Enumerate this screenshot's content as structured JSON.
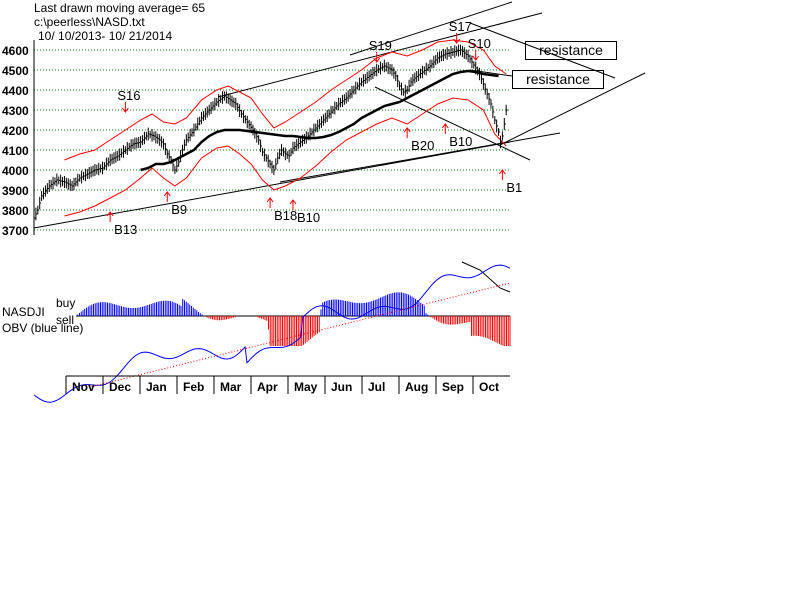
{
  "header": {
    "line1": "Last drawn moving average= 65",
    "line2": "c:\\peerless\\NASD.txt",
    "line3": "10/ 10/2013- 10/ 21/2014"
  },
  "colors": {
    "price": "#000000",
    "band": "#ff0000",
    "ma": "#000000",
    "obv": "#0000ff",
    "grid": "#008000",
    "buy_hist": "#0000ff",
    "sell_hist": "#ff0000",
    "sell_arrow": "#ff0000",
    "buy_arrow": "#ff0000"
  },
  "chart_data": {
    "type": "line",
    "title": "",
    "ylabel": "",
    "xlabel": "",
    "ylim": [
      3700,
      4650
    ],
    "y_ticks": [
      3700,
      3800,
      3900,
      4000,
      4100,
      4200,
      4300,
      4400,
      4500,
      4600
    ],
    "grid": true,
    "x_months": [
      "Nov",
      "Dec",
      "Jan",
      "Feb",
      "Mar",
      "Apr",
      "May",
      "Jun",
      "Jul",
      "Aug",
      "Sep",
      "Oct"
    ],
    "price_series": {
      "name": "",
      "points": [
        [
          0,
          3760
        ],
        [
          2,
          3800
        ],
        [
          4,
          3870
        ],
        [
          8,
          3920
        ],
        [
          12,
          3950
        ],
        [
          16,
          3940
        ],
        [
          20,
          3920
        ],
        [
          24,
          3960
        ],
        [
          28,
          3980
        ],
        [
          32,
          4000
        ],
        [
          36,
          4010
        ],
        [
          40,
          4050
        ],
        [
          44,
          4070
        ],
        [
          48,
          4100
        ],
        [
          52,
          4130
        ],
        [
          56,
          4140
        ],
        [
          60,
          4180
        ],
        [
          63,
          4170
        ],
        [
          66,
          4150
        ],
        [
          68,
          4130
        ],
        [
          70,
          4080
        ],
        [
          72,
          4050
        ],
        [
          74,
          4000
        ],
        [
          76,
          4040
        ],
        [
          78,
          4100
        ],
        [
          80,
          4150
        ],
        [
          84,
          4200
        ],
        [
          88,
          4260
        ],
        [
          92,
          4300
        ],
        [
          96,
          4340
        ],
        [
          100,
          4370
        ],
        [
          103,
          4350
        ],
        [
          106,
          4330
        ],
        [
          109,
          4280
        ],
        [
          112,
          4240
        ],
        [
          115,
          4200
        ],
        [
          118,
          4150
        ],
        [
          120,
          4090
        ],
        [
          122,
          4060
        ],
        [
          124,
          4030
        ],
        [
          126,
          4000
        ],
        [
          128,
          4060
        ],
        [
          130,
          4100
        ],
        [
          132,
          4080
        ],
        [
          134,
          4070
        ],
        [
          136,
          4110
        ],
        [
          140,
          4140
        ],
        [
          144,
          4170
        ],
        [
          148,
          4210
        ],
        [
          152,
          4250
        ],
        [
          156,
          4290
        ],
        [
          160,
          4330
        ],
        [
          164,
          4360
        ],
        [
          168,
          4400
        ],
        [
          172,
          4440
        ],
        [
          176,
          4470
        ],
        [
          180,
          4500
        ],
        [
          184,
          4520
        ],
        [
          188,
          4500
        ],
        [
          190,
          4470
        ],
        [
          192,
          4420
        ],
        [
          194,
          4390
        ],
        [
          196,
          4400
        ],
        [
          198,
          4440
        ],
        [
          200,
          4460
        ],
        [
          204,
          4490
        ],
        [
          208,
          4520
        ],
        [
          212,
          4560
        ],
        [
          216,
          4580
        ],
        [
          220,
          4590
        ],
        [
          224,
          4600
        ],
        [
          228,
          4570
        ],
        [
          230,
          4540
        ],
        [
          232,
          4510
        ],
        [
          234,
          4480
        ],
        [
          236,
          4430
        ],
        [
          238,
          4380
        ],
        [
          240,
          4330
        ],
        [
          242,
          4250
        ],
        [
          244,
          4190
        ],
        [
          245,
          4140
        ],
        [
          246,
          4170
        ],
        [
          247,
          4230
        ],
        [
          248,
          4300
        ]
      ]
    },
    "ma65": {
      "name": "",
      "points": [
        [
          56,
          4000
        ],
        [
          60,
          4010
        ],
        [
          64,
          4030
        ],
        [
          68,
          4030
        ],
        [
          72,
          4040
        ],
        [
          76,
          4060
        ],
        [
          80,
          4080
        ],
        [
          84,
          4100
        ],
        [
          88,
          4140
        ],
        [
          92,
          4170
        ],
        [
          96,
          4190
        ],
        [
          100,
          4200
        ],
        [
          104,
          4200
        ],
        [
          108,
          4200
        ],
        [
          112,
          4195
        ],
        [
          116,
          4190
        ],
        [
          120,
          4185
        ],
        [
          124,
          4180
        ],
        [
          128,
          4175
        ],
        [
          132,
          4170
        ],
        [
          136,
          4170
        ],
        [
          140,
          4165
        ],
        [
          144,
          4160
        ],
        [
          148,
          4160
        ],
        [
          152,
          4165
        ],
        [
          156,
          4175
        ],
        [
          160,
          4190
        ],
        [
          164,
          4210
        ],
        [
          168,
          4230
        ],
        [
          172,
          4260
        ],
        [
          176,
          4280
        ],
        [
          180,
          4300
        ],
        [
          184,
          4320
        ],
        [
          188,
          4330
        ],
        [
          192,
          4340
        ],
        [
          196,
          4360
        ],
        [
          200,
          4380
        ],
        [
          204,
          4400
        ],
        [
          208,
          4420
        ],
        [
          212,
          4440
        ],
        [
          216,
          4460
        ],
        [
          220,
          4480
        ],
        [
          224,
          4490
        ],
        [
          228,
          4495
        ],
        [
          232,
          4490
        ],
        [
          236,
          4480
        ],
        [
          240,
          4475
        ],
        [
          244,
          4470
        ]
      ]
    },
    "upper_band": {
      "name": "",
      "points": [
        [
          16,
          4050
        ],
        [
          24,
          4080
        ],
        [
          32,
          4100
        ],
        [
          40,
          4150
        ],
        [
          48,
          4200
        ],
        [
          56,
          4250
        ],
        [
          62,
          4280
        ],
        [
          68,
          4240
        ],
        [
          74,
          4230
        ],
        [
          80,
          4260
        ],
        [
          88,
          4350
        ],
        [
          96,
          4400
        ],
        [
          102,
          4420
        ],
        [
          108,
          4390
        ],
        [
          114,
          4360
        ],
        [
          120,
          4280
        ],
        [
          126,
          4210
        ],
        [
          132,
          4240
        ],
        [
          140,
          4290
        ],
        [
          148,
          4340
        ],
        [
          156,
          4400
        ],
        [
          164,
          4450
        ],
        [
          172,
          4500
        ],
        [
          180,
          4560
        ],
        [
          188,
          4590
        ],
        [
          196,
          4570
        ],
        [
          204,
          4600
        ],
        [
          212,
          4640
        ],
        [
          220,
          4650
        ],
        [
          228,
          4640
        ],
        [
          236,
          4600
        ],
        [
          242,
          4520
        ],
        [
          248,
          4480
        ]
      ]
    },
    "lower_band": {
      "name": "",
      "points": [
        [
          16,
          3770
        ],
        [
          24,
          3790
        ],
        [
          32,
          3820
        ],
        [
          40,
          3860
        ],
        [
          48,
          3900
        ],
        [
          56,
          3960
        ],
        [
          62,
          4010
        ],
        [
          68,
          3960
        ],
        [
          74,
          3920
        ],
        [
          80,
          3960
        ],
        [
          88,
          4060
        ],
        [
          96,
          4110
        ],
        [
          102,
          4120
        ],
        [
          108,
          4080
        ],
        [
          114,
          4030
        ],
        [
          120,
          3950
        ],
        [
          126,
          3900
        ],
        [
          132,
          3920
        ],
        [
          140,
          3960
        ],
        [
          148,
          4020
        ],
        [
          156,
          4090
        ],
        [
          164,
          4150
        ],
        [
          172,
          4190
        ],
        [
          180,
          4230
        ],
        [
          188,
          4260
        ],
        [
          196,
          4230
        ],
        [
          204,
          4280
        ],
        [
          212,
          4330
        ],
        [
          220,
          4360
        ],
        [
          228,
          4350
        ],
        [
          236,
          4300
        ],
        [
          242,
          4180
        ],
        [
          248,
          4120
        ]
      ]
    },
    "signals": [
      {
        "label": "S16",
        "x": 48,
        "y": 4260,
        "kind": "sell"
      },
      {
        "label": "S17",
        "x": 222,
        "y": 4605,
        "kind": "sell"
      },
      {
        "label": "S19",
        "x": 180,
        "y": 4510,
        "kind": "sell"
      },
      {
        "label": "S10",
        "x": 232,
        "y": 4520,
        "kind": "sell"
      },
      {
        "label": "B9",
        "x": 70,
        "y": 3920,
        "kind": "buy"
      },
      {
        "label": "B13",
        "x": 40,
        "y": 3820,
        "kind": "buy"
      },
      {
        "label": "B18",
        "x": 124,
        "y": 3890,
        "kind": "buy"
      },
      {
        "label": "B10",
        "x": 136,
        "y": 3880,
        "kind": "buy"
      },
      {
        "label": "B20",
        "x": 196,
        "y": 4240,
        "kind": "buy"
      },
      {
        "label": "B10",
        "x": 216,
        "y": 4260,
        "kind": "buy"
      },
      {
        "label": "B1",
        "x": 246,
        "y": 4030,
        "kind": "buy"
      }
    ],
    "annotations": [
      "resistance",
      "resistance"
    ],
    "indicator": {
      "name": "NASDJI",
      "buy_label": "buy",
      "sell_label": "sell",
      "obv_label": "OBV (blue line)"
    }
  }
}
